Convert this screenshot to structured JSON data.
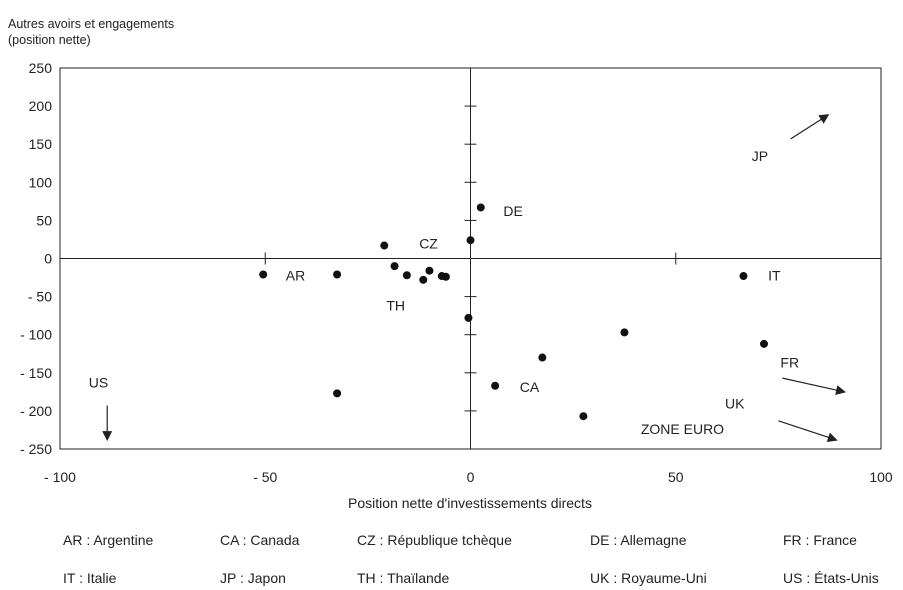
{
  "chart_data": {
    "type": "scatter",
    "ylabel_lines": [
      "Autres avoirs et engagements",
      "(position nette)"
    ],
    "xlabel": "Position nette d'investissements directs",
    "xlim": [
      -100,
      100
    ],
    "ylim": [
      -250,
      250
    ],
    "x_ticks": [
      -100,
      -50,
      0,
      50,
      100
    ],
    "x_tick_labels": [
      "- 100",
      "- 50",
      "0",
      "50",
      "100"
    ],
    "y_ticks": [
      250,
      200,
      150,
      100,
      50,
      0,
      -50,
      -100,
      -150,
      -200,
      -250
    ],
    "y_tick_labels": [
      "250",
      "200",
      "150",
      "100",
      "50",
      "0",
      "- 50",
      "- 100",
      "- 150",
      "- 200",
      "- 250"
    ],
    "points": [
      {
        "x": -50.5,
        "y": -21
      },
      {
        "x": -32.5,
        "y": -21
      },
      {
        "x": -21,
        "y": 17
      },
      {
        "x": -18.5,
        "y": -10
      },
      {
        "x": -15.5,
        "y": -22
      },
      {
        "x": -11.5,
        "y": -28
      },
      {
        "x": -10,
        "y": -16
      },
      {
        "x": -7,
        "y": -23
      },
      {
        "x": -6,
        "y": -24
      },
      {
        "x": -0.5,
        "y": -78
      },
      {
        "x": 0,
        "y": 24
      },
      {
        "x": 2.5,
        "y": 67
      },
      {
        "x": 6,
        "y": -167
      },
      {
        "x": 17.5,
        "y": -130
      },
      {
        "x": 27.5,
        "y": -207
      },
      {
        "x": 37.5,
        "y": -97
      },
      {
        "x": 66.5,
        "y": -23
      },
      {
        "x": 71.5,
        "y": -112
      },
      {
        "x": -32.5,
        "y": -177
      }
    ],
    "annotations": [
      {
        "text": "AR",
        "x": -45,
        "y": -29
      },
      {
        "text": "CZ",
        "x": -12.5,
        "y": 13
      },
      {
        "text": "TH",
        "x": -20.5,
        "y": -68
      },
      {
        "text": "DE",
        "x": 8,
        "y": 56
      },
      {
        "text": "CA",
        "x": 12,
        "y": -175
      },
      {
        "text": "IT",
        "x": 72.5,
        "y": -29
      },
      {
        "text": "JP",
        "x": 68.5,
        "y": 128
      },
      {
        "text": "FR",
        "x": 75.5,
        "y": -143
      },
      {
        "text": "UK",
        "x": 62,
        "y": -197
      },
      {
        "text": "ZONE EURO",
        "x": 41.5,
        "y": -230
      },
      {
        "text": "US",
        "x": -93,
        "y": -169
      }
    ],
    "arrows": [
      {
        "label": "JP",
        "x1": 78,
        "y1": 157,
        "x2": 87,
        "y2": 188
      },
      {
        "label": "FR",
        "x1": 76,
        "y1": -157,
        "x2": 91,
        "y2": -175
      },
      {
        "label": "ZONE EURO",
        "x1": 75,
        "y1": -213,
        "x2": 89,
        "y2": -238
      },
      {
        "label": "US",
        "x1": -88.5,
        "y1": -193,
        "x2": -88.5,
        "y2": -237
      }
    ],
    "grid": false
  },
  "legend": [
    {
      "text": "AR : Argentine"
    },
    {
      "text": "CA : Canada"
    },
    {
      "text": "CZ : République tchèque"
    },
    {
      "text": "DE : Allemagne"
    },
    {
      "text": "FR : France"
    },
    {
      "text": "IT : Italie"
    },
    {
      "text": "JP : Japon"
    },
    {
      "text": "TH : Thaïlande"
    },
    {
      "text": "UK : Royaume-Uni"
    },
    {
      "text": "US : États-Unis"
    }
  ]
}
